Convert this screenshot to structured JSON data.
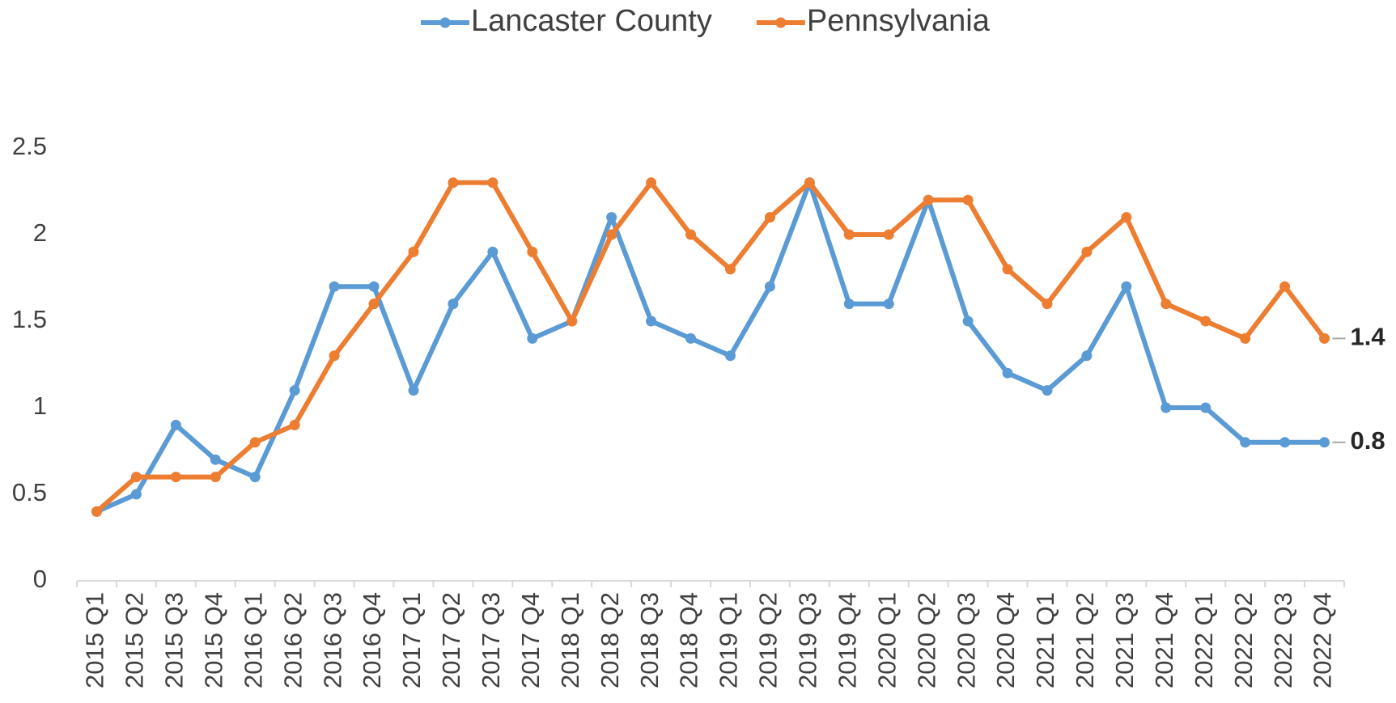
{
  "chart_data": {
    "type": "line",
    "categories": [
      "2015 Q1",
      "2015 Q2",
      "2015 Q3",
      "2015 Q4",
      "2016 Q1",
      "2016 Q2",
      "2016 Q3",
      "2016 Q4",
      "2017 Q1",
      "2017 Q2",
      "2017 Q3",
      "2017 Q4",
      "2018 Q1",
      "2018 Q2",
      "2018 Q3",
      "2018 Q4",
      "2019 Q1",
      "2019 Q2",
      "2019 Q3",
      "2019 Q4",
      "2020 Q1",
      "2020 Q2",
      "2020 Q3",
      "2020 Q4",
      "2021 Q1",
      "2021 Q2",
      "2021 Q3",
      "2021 Q4",
      "2022 Q1",
      "2022 Q2",
      "2022 Q3",
      "2022 Q4"
    ],
    "series": [
      {
        "name": "Lancaster County",
        "color": "#5b9bd5",
        "values": [
          0.4,
          0.5,
          0.9,
          0.7,
          0.6,
          1.1,
          1.7,
          1.7,
          1.1,
          1.6,
          1.9,
          1.4,
          1.5,
          2.1,
          1.5,
          1.4,
          1.3,
          1.7,
          2.3,
          1.6,
          1.6,
          2.2,
          1.5,
          1.2,
          1.1,
          1.3,
          1.7,
          1.0,
          1.0,
          0.8,
          0.8,
          0.8
        ]
      },
      {
        "name": "Pennsylvania",
        "color": "#ed7d31",
        "values": [
          0.4,
          0.6,
          0.6,
          0.6,
          0.8,
          0.9,
          1.3,
          1.6,
          1.9,
          2.3,
          2.3,
          1.9,
          1.5,
          2.0,
          2.3,
          2.0,
          1.8,
          2.1,
          2.3,
          2.0,
          2.0,
          2.2,
          2.2,
          1.8,
          1.6,
          1.9,
          2.1,
          1.6,
          1.5,
          1.4,
          1.7,
          1.4
        ]
      }
    ],
    "ylim": [
      0,
      2.5
    ],
    "yticks": [
      0,
      0.5,
      1,
      1.5,
      2,
      2.5
    ],
    "grid": false,
    "legend": "top"
  }
}
